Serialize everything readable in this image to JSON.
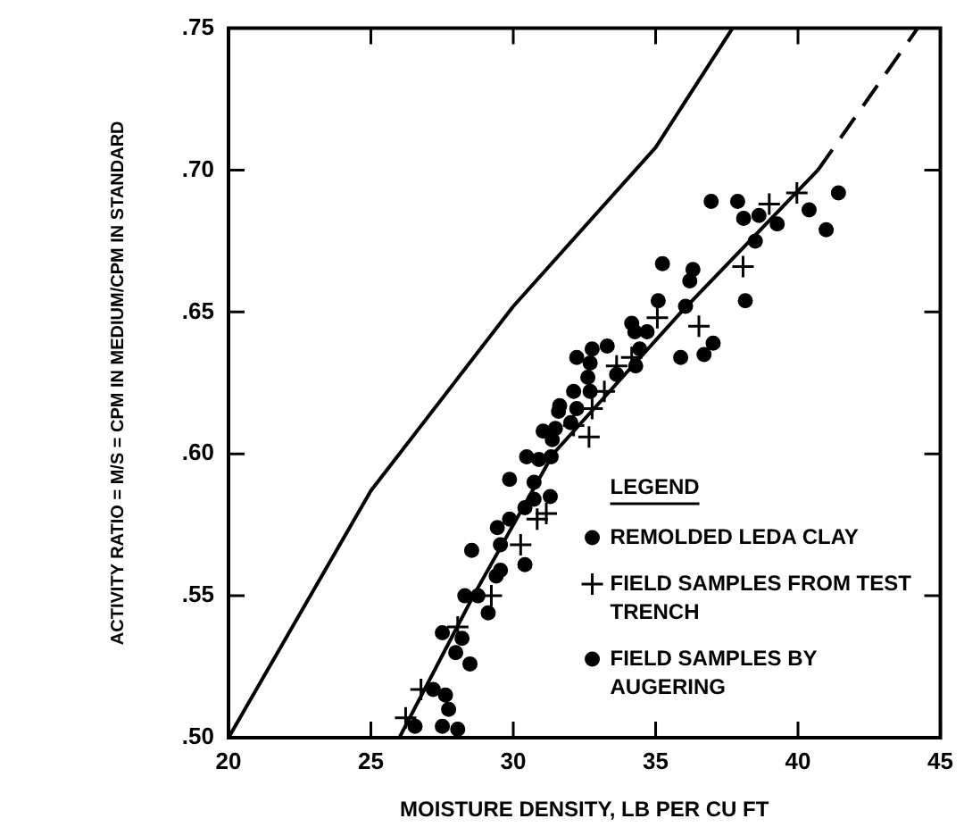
{
  "chart_data": {
    "type": "scatter",
    "xlabel": "MOISTURE DENSITY, LB PER CU FT",
    "ylabel": "ACTIVITY RATIO = M/S = CPM IN MEDIUM/CPM IN STANDARD",
    "legend_title": "LEGEND",
    "legend": "bottom right",
    "grid": false,
    "xlim": [
      20,
      45
    ],
    "xticks": [
      20,
      25,
      30,
      35,
      40,
      45
    ],
    "ylim": [
      0.5,
      0.75
    ],
    "yticks": [
      {
        "value": 0.5,
        "label": ".50"
      },
      {
        "value": 0.55,
        "label": ".55"
      },
      {
        "value": 0.6,
        "label": ".60"
      },
      {
        "value": 0.65,
        "label": ".65"
      },
      {
        "value": 0.7,
        "label": ".70"
      },
      {
        "value": 0.75,
        "label": ".75"
      }
    ],
    "series": [
      {
        "type": "line",
        "color": "#000000",
        "line_style": "solid",
        "marker": "none",
        "x": [
          20,
          25,
          30,
          35,
          37.7
        ],
        "values": [
          0.5,
          0.587,
          0.652,
          0.708,
          0.75
        ]
      },
      {
        "type": "line",
        "color": "#000000",
        "line_style": "solid",
        "marker": "none",
        "x": [
          26,
          28.6,
          31.4,
          35.9,
          40.7
        ],
        "values": [
          0.5,
          0.55,
          0.6,
          0.65,
          0.7
        ]
      },
      {
        "type": "line",
        "color": "#000000",
        "line_style": "dashed",
        "marker": "none",
        "x": [
          40.7,
          44.2
        ],
        "values": [
          0.7,
          0.75
        ]
      },
      {
        "type": "scatter",
        "name": "REMOLDED LEDA CLAY",
        "color": "#000000",
        "marker": "circle",
        "x": [
          38.5,
          34.3,
          31.3
        ],
        "values": [
          0.675,
          0.631,
          0.585
        ]
      },
      {
        "type": "scatter",
        "name": "FIELD SAMPLES FROM TEST TRENCH",
        "color": "#000000",
        "marker": "cross",
        "x": [
          39.96,
          38.99,
          38.07,
          36.52,
          35.06,
          34.16,
          33.63,
          33.2,
          32.77,
          32.66,
          32.12,
          31.16,
          30.84,
          30.26,
          29.23,
          28.05,
          26.76,
          26.22
        ],
        "values": [
          0.692,
          0.688,
          0.666,
          0.645,
          0.648,
          0.634,
          0.631,
          0.622,
          0.616,
          0.606,
          0.61,
          0.579,
          0.577,
          0.568,
          0.55,
          0.539,
          0.517,
          0.507
        ]
      },
      {
        "type": "scatter",
        "name": "FIELD SAMPLES BY AUGERING",
        "color": "#000000",
        "marker": "circle",
        "x": [
          36.95,
          37.88,
          38.09,
          38.63,
          39.27,
          40.39,
          41.42,
          40.99,
          38.15,
          35.24,
          36.31,
          36.2,
          35.09,
          36.05,
          35.88,
          36.7,
          37.02,
          34.16,
          34.27,
          34.7,
          34.44,
          33.3,
          32.77,
          32.23,
          32.7,
          32.62,
          32.7,
          32.12,
          33.63,
          32.23,
          32.02,
          31.63,
          31.59,
          31.37,
          31.05,
          31.48,
          31.33,
          30.9,
          30.47,
          29.87,
          30.73,
          30.73,
          30.41,
          29.87,
          29.44,
          29.55,
          30.41,
          29.55,
          29.4,
          28.54,
          28.76,
          28.3,
          29.12,
          27.51,
          28.2,
          27.98,
          28.48,
          27.19,
          27.62,
          27.73,
          26.55,
          27.51,
          28.05
        ],
        "values": [
          0.689,
          0.689,
          0.683,
          0.684,
          0.681,
          0.686,
          0.692,
          0.679,
          0.654,
          0.667,
          0.665,
          0.661,
          0.654,
          0.652,
          0.634,
          0.635,
          0.639,
          0.646,
          0.643,
          0.643,
          0.637,
          0.638,
          0.637,
          0.634,
          0.632,
          0.627,
          0.622,
          0.622,
          0.628,
          0.616,
          0.611,
          0.617,
          0.615,
          0.605,
          0.608,
          0.609,
          0.599,
          0.598,
          0.599,
          0.591,
          0.59,
          0.584,
          0.581,
          0.577,
          0.574,
          0.568,
          0.561,
          0.559,
          0.557,
          0.566,
          0.55,
          0.55,
          0.544,
          0.537,
          0.535,
          0.53,
          0.526,
          0.517,
          0.515,
          0.51,
          0.504,
          0.504,
          0.503
        ]
      }
    ]
  }
}
